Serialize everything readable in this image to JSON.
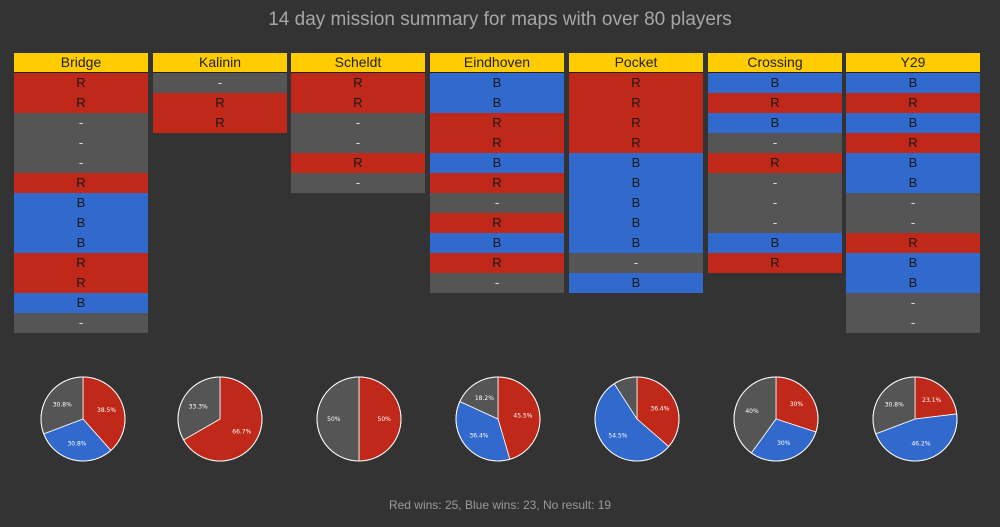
{
  "title": "14 day mission summary for maps with over 80 players",
  "footer": "Red wins: 25, Blue wins: 23, No result: 19",
  "colors": {
    "R": "#c0281a",
    "B": "#3169cc",
    "N": "#555555",
    "header": "#ffcc00"
  },
  "chart_data": {
    "type": "table",
    "maps": [
      {
        "name": "Bridge",
        "results": [
          "R",
          "R",
          "-",
          "-",
          "-",
          "R",
          "B",
          "B",
          "B",
          "R",
          "R",
          "B",
          "-"
        ],
        "pie": [
          {
            "label": "38.5%",
            "value": 38.5,
            "side": "R"
          },
          {
            "label": "30.8%",
            "value": 30.8,
            "side": "B"
          },
          {
            "label": "30.8%",
            "value": 30.8,
            "side": "N"
          }
        ]
      },
      {
        "name": "Kalinin",
        "results": [
          "-",
          "R",
          "R"
        ],
        "pie": [
          {
            "label": "66.7%",
            "value": 66.7,
            "side": "R"
          },
          {
            "label": "33.3%",
            "value": 33.3,
            "side": "N"
          }
        ]
      },
      {
        "name": "Scheldt",
        "results": [
          "R",
          "R",
          "-",
          "-",
          "R",
          "-"
        ],
        "pie": [
          {
            "label": "50%",
            "value": 50,
            "side": "R"
          },
          {
            "label": "50%",
            "value": 50,
            "side": "N"
          }
        ]
      },
      {
        "name": "Eindhoven",
        "results": [
          "B",
          "B",
          "R",
          "R",
          "B",
          "R",
          "-",
          "R",
          "B",
          "R",
          "-"
        ],
        "pie": [
          {
            "label": "45.5%",
            "value": 45.5,
            "side": "R"
          },
          {
            "label": "36.4%",
            "value": 36.4,
            "side": "B"
          },
          {
            "label": "18.2%",
            "value": 18.2,
            "side": "N"
          }
        ]
      },
      {
        "name": "Pocket",
        "results": [
          "R",
          "R",
          "R",
          "R",
          "B",
          "B",
          "B",
          "B",
          "B",
          "-",
          "B"
        ],
        "pie": [
          {
            "label": "36.4%",
            "value": 36.4,
            "side": "R"
          },
          {
            "label": "54.5%",
            "value": 54.5,
            "side": "B"
          },
          {
            "label": "",
            "value": 9.1,
            "side": "N"
          }
        ]
      },
      {
        "name": "Crossing",
        "results": [
          "B",
          "R",
          "B",
          "-",
          "R",
          "-",
          "-",
          "-",
          "B",
          "R"
        ],
        "pie": [
          {
            "label": "30%",
            "value": 30,
            "side": "R"
          },
          {
            "label": "30%",
            "value": 30,
            "side": "B"
          },
          {
            "label": "40%",
            "value": 40,
            "side": "N"
          }
        ]
      },
      {
        "name": "Y29",
        "results": [
          "B",
          "R",
          "B",
          "R",
          "B",
          "B",
          "-",
          "-",
          "R",
          "B",
          "B",
          "-",
          "-"
        ],
        "pie": [
          {
            "label": "23.1%",
            "value": 23.1,
            "side": "R"
          },
          {
            "label": "46.2%",
            "value": 46.2,
            "side": "B"
          },
          {
            "label": "30.8%",
            "value": 30.8,
            "side": "N"
          }
        ]
      }
    ]
  }
}
